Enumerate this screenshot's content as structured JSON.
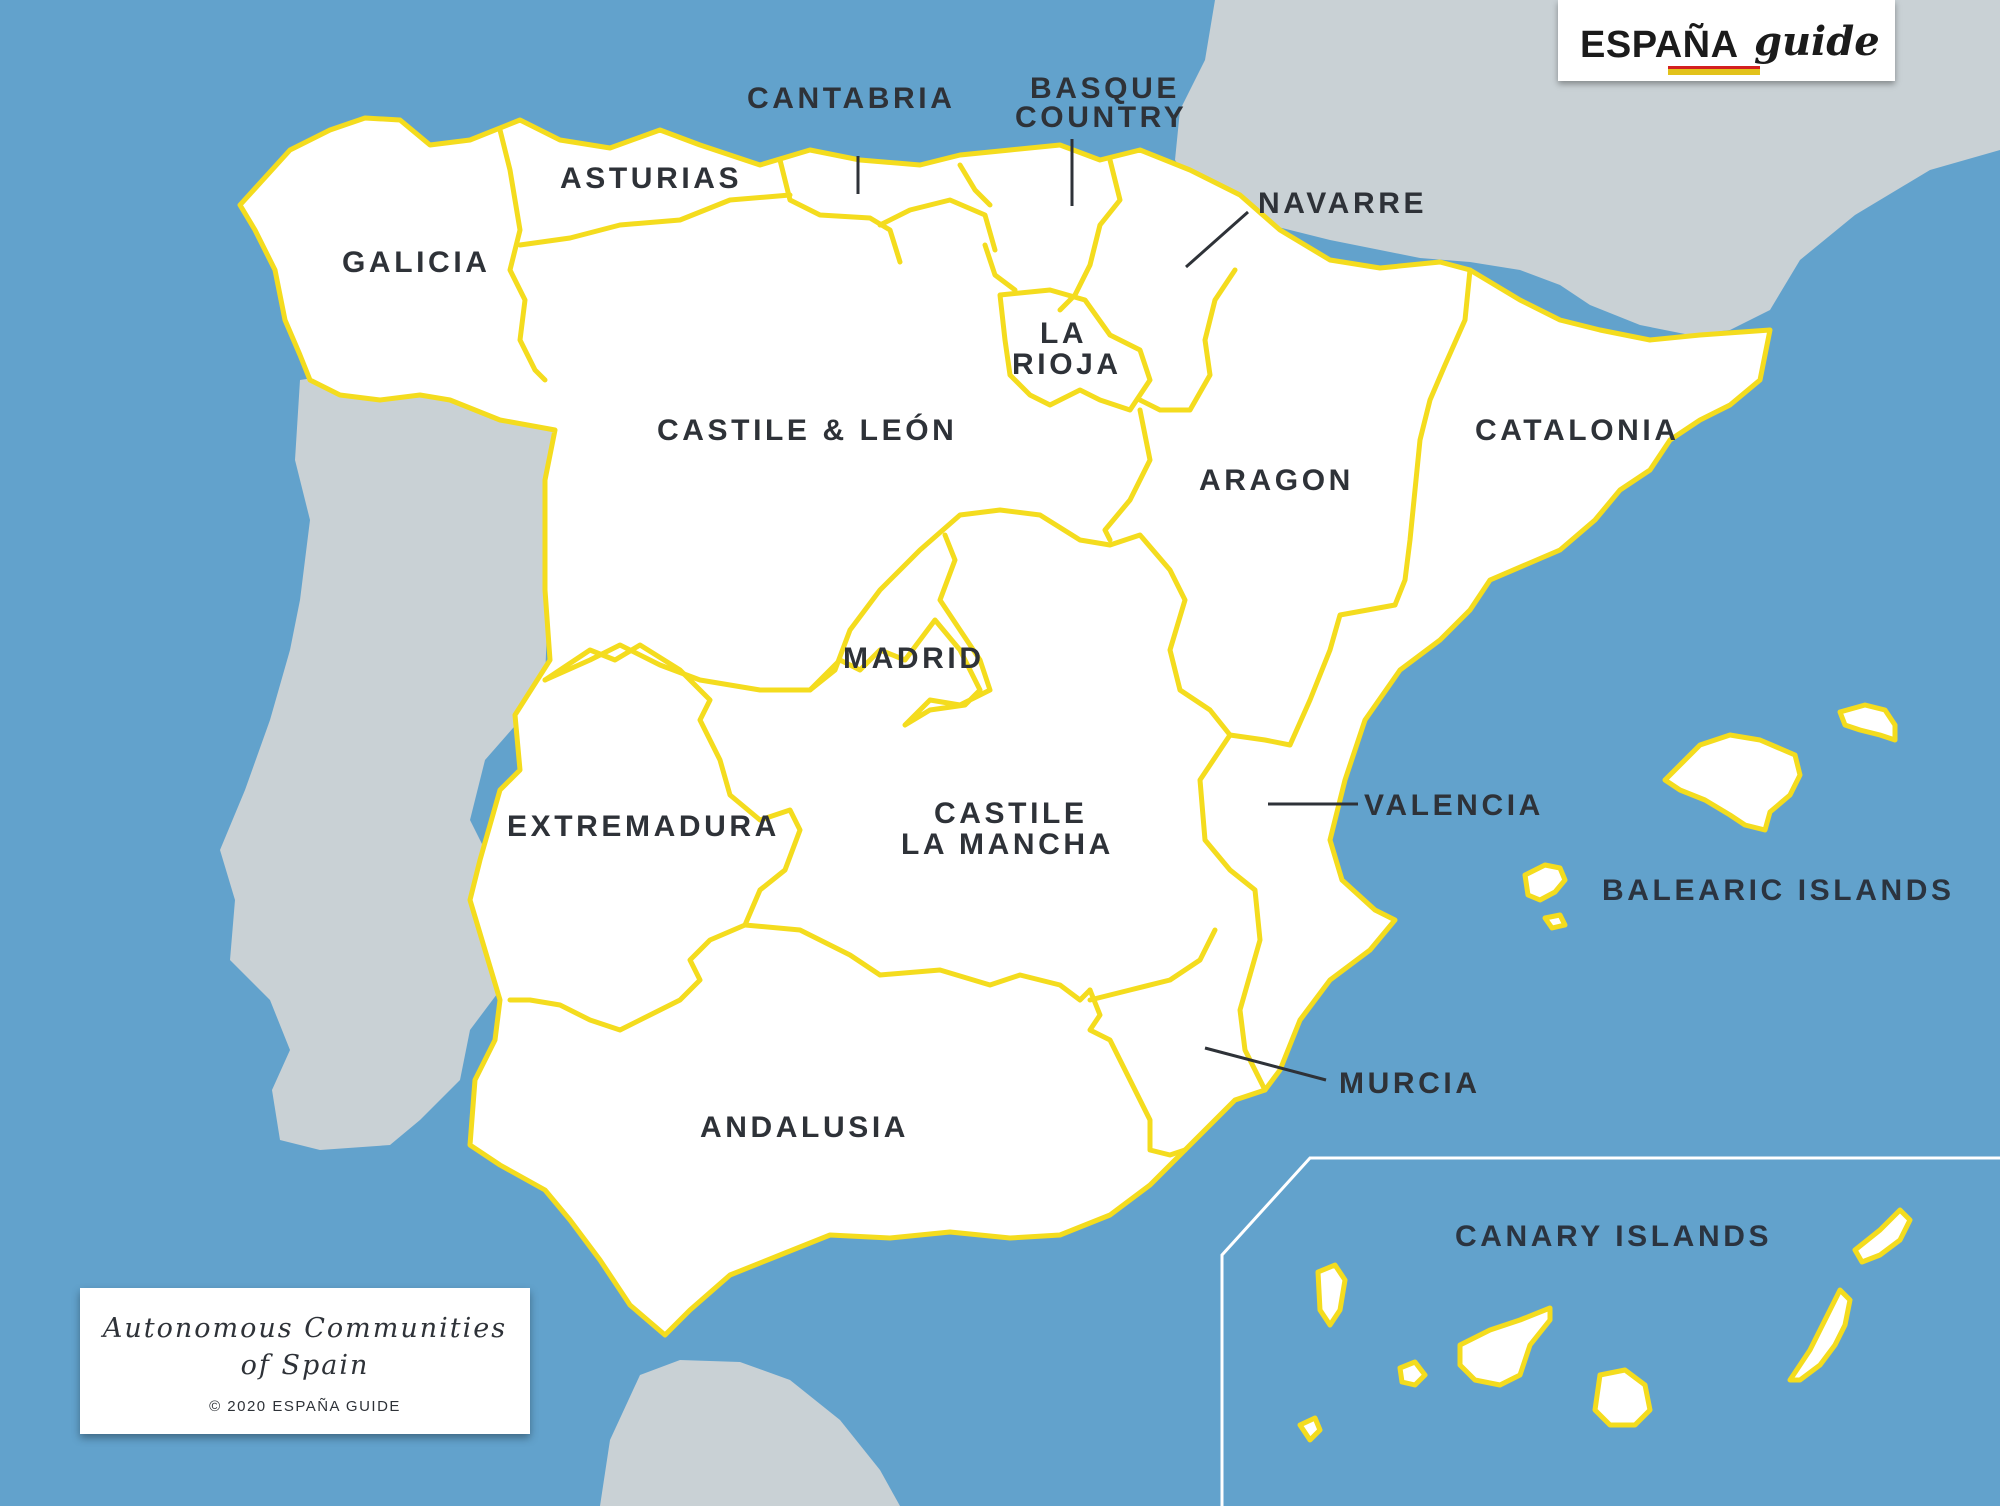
{
  "brand": {
    "wordmark": "ESPAÑA",
    "script": "guide",
    "colors": {
      "yellow": "#e2c21b",
      "red": "#d32020"
    }
  },
  "title": {
    "line1": "Autonomous Communities",
    "line2": "of Spain",
    "copyright": "© 2020 ESPAÑA GUIDE"
  },
  "colors": {
    "sea": "#62a2cc",
    "spain_land": "#ffffff",
    "neighbour_land": "#c9d1d5",
    "region_border": "#f4dc1e",
    "label_text": "#2e3238"
  },
  "regions": {
    "galicia": "GALICIA",
    "asturias": "ASTURIAS",
    "cantabria": "CANTABRIA",
    "basque_1": "BASQUE",
    "basque_2": "COUNTRY",
    "navarre": "NAVARRE",
    "la_rioja_1": "LA",
    "la_rioja_2": "RIOJA",
    "castile_leon": "CASTILE & LEÓN",
    "aragon": "ARAGON",
    "catalonia": "CATALONIA",
    "madrid": "MADRID",
    "extremadura": "EXTREMADURA",
    "castile_la_mancha_1": "CASTILE",
    "castile_la_mancha_2": "LA MANCHA",
    "valencia": "VALENCIA",
    "balearic": "BALEARIC ISLANDS",
    "murcia": "MURCIA",
    "andalusia": "ANDALUSIA",
    "canary": "CANARY ISLANDS"
  }
}
